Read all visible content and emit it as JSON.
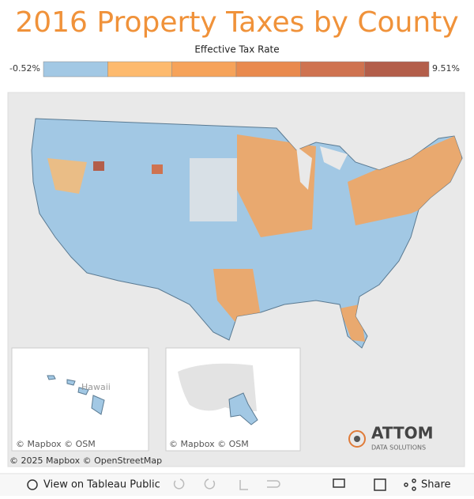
{
  "title": "2016 Property Taxes by County",
  "legend": {
    "title": "Effective Tax Rate",
    "min_label": "-0.52%",
    "max_label": "9.51%",
    "colors": [
      "#a2c8e4",
      "#fdba6e",
      "#f6a35a",
      "#e98a4e",
      "#cf7350",
      "#b35e4a"
    ]
  },
  "map": {
    "hawaii_label": "Hawaii",
    "inset_attribution_1": "© Mapbox  © OSM",
    "inset_attribution_2": "© Mapbox  © OSM",
    "attribution": "© 2025 Mapbox  © OpenStreetMap"
  },
  "logo": {
    "name": "ATTOM",
    "tagline": "DATA SOLUTIONS"
  },
  "toolbar": {
    "view": "View on Tableau Public",
    "share": "Share"
  }
}
